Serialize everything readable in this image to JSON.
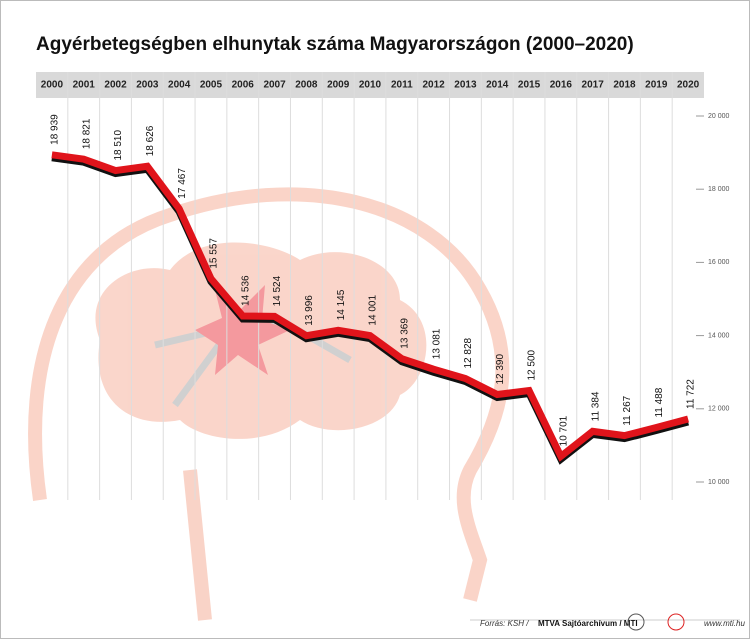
{
  "chart_data": {
    "type": "line",
    "title": "Agyérbetegségben elhunytak száma Magyarországon (2000–2020)",
    "categories": [
      "2000",
      "2001",
      "2002",
      "2003",
      "2004",
      "2005",
      "2006",
      "2007",
      "2008",
      "2009",
      "2010",
      "2011",
      "2012",
      "2013",
      "2014",
      "2015",
      "2016",
      "2017",
      "2018",
      "2019",
      "2020"
    ],
    "values": [
      18939,
      18821,
      18510,
      18626,
      17467,
      15557,
      14536,
      14524,
      13996,
      14145,
      14001,
      13369,
      13081,
      12828,
      12390,
      12500,
      10701,
      11384,
      11267,
      11488,
      11722
    ],
    "value_labels": [
      "18 939",
      "18 821",
      "18 510",
      "18 626",
      "17 467",
      "15 557",
      "14 536",
      "14 524",
      "13 996",
      "14 145",
      "14 001",
      "13 369",
      "13 081",
      "12 828",
      "12 390",
      "12 500",
      "10 701",
      "11 384",
      "11 267",
      "11 488",
      "11 722"
    ],
    "color": "#e0141b",
    "ylim": [
      10000,
      20000
    ],
    "yticks": [
      {
        "value": 10000,
        "label": "10 000"
      },
      {
        "value": 12000,
        "label": "12 000"
      },
      {
        "value": 14000,
        "label": "14 000"
      },
      {
        "value": 16000,
        "label": "16 000"
      },
      {
        "value": 18000,
        "label": "18 000"
      },
      {
        "value": 20000,
        "label": "20 000"
      }
    ],
    "source": "Forrás: KSH /",
    "archive": "MTVA Sajtóarchívum / MTI",
    "url": "www.mti.hu"
  }
}
